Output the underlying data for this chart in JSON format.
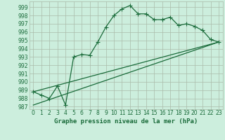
{
  "title": "Graphe pression niveau de la mer (hPa)",
  "bg_color": "#cceedd",
  "grid_color": "#aabbaa",
  "line_color": "#1a6b3a",
  "xlim": [
    -0.5,
    23.5
  ],
  "ylim": [
    986.7,
    999.7
  ],
  "yticks": [
    987,
    988,
    989,
    990,
    991,
    992,
    993,
    994,
    995,
    996,
    997,
    998,
    999
  ],
  "xticks": [
    0,
    1,
    2,
    3,
    4,
    5,
    6,
    7,
    8,
    9,
    10,
    11,
    12,
    13,
    14,
    15,
    16,
    17,
    18,
    19,
    20,
    21,
    22,
    23
  ],
  "series1_x": [
    0,
    1,
    2,
    3,
    4,
    5,
    6,
    7,
    8,
    9,
    10,
    11,
    12,
    13,
    14,
    15,
    16,
    17,
    18,
    19,
    20,
    21,
    22,
    23
  ],
  "series1_y": [
    988.8,
    988.4,
    988.0,
    989.5,
    987.2,
    993.0,
    993.3,
    993.2,
    994.8,
    996.6,
    998.0,
    998.8,
    999.2,
    998.2,
    998.2,
    997.5,
    997.5,
    997.8,
    996.8,
    997.0,
    996.7,
    996.2,
    995.1,
    994.8
  ],
  "series2_x": [
    0,
    23
  ],
  "series2_y": [
    988.8,
    994.8
  ],
  "series3_x": [
    0,
    23
  ],
  "series3_y": [
    987.2,
    994.8
  ],
  "marker": "+",
  "markersize": 4,
  "linewidth": 0.9,
  "tick_fontsize": 5.5,
  "xlabel_fontsize": 6.5
}
